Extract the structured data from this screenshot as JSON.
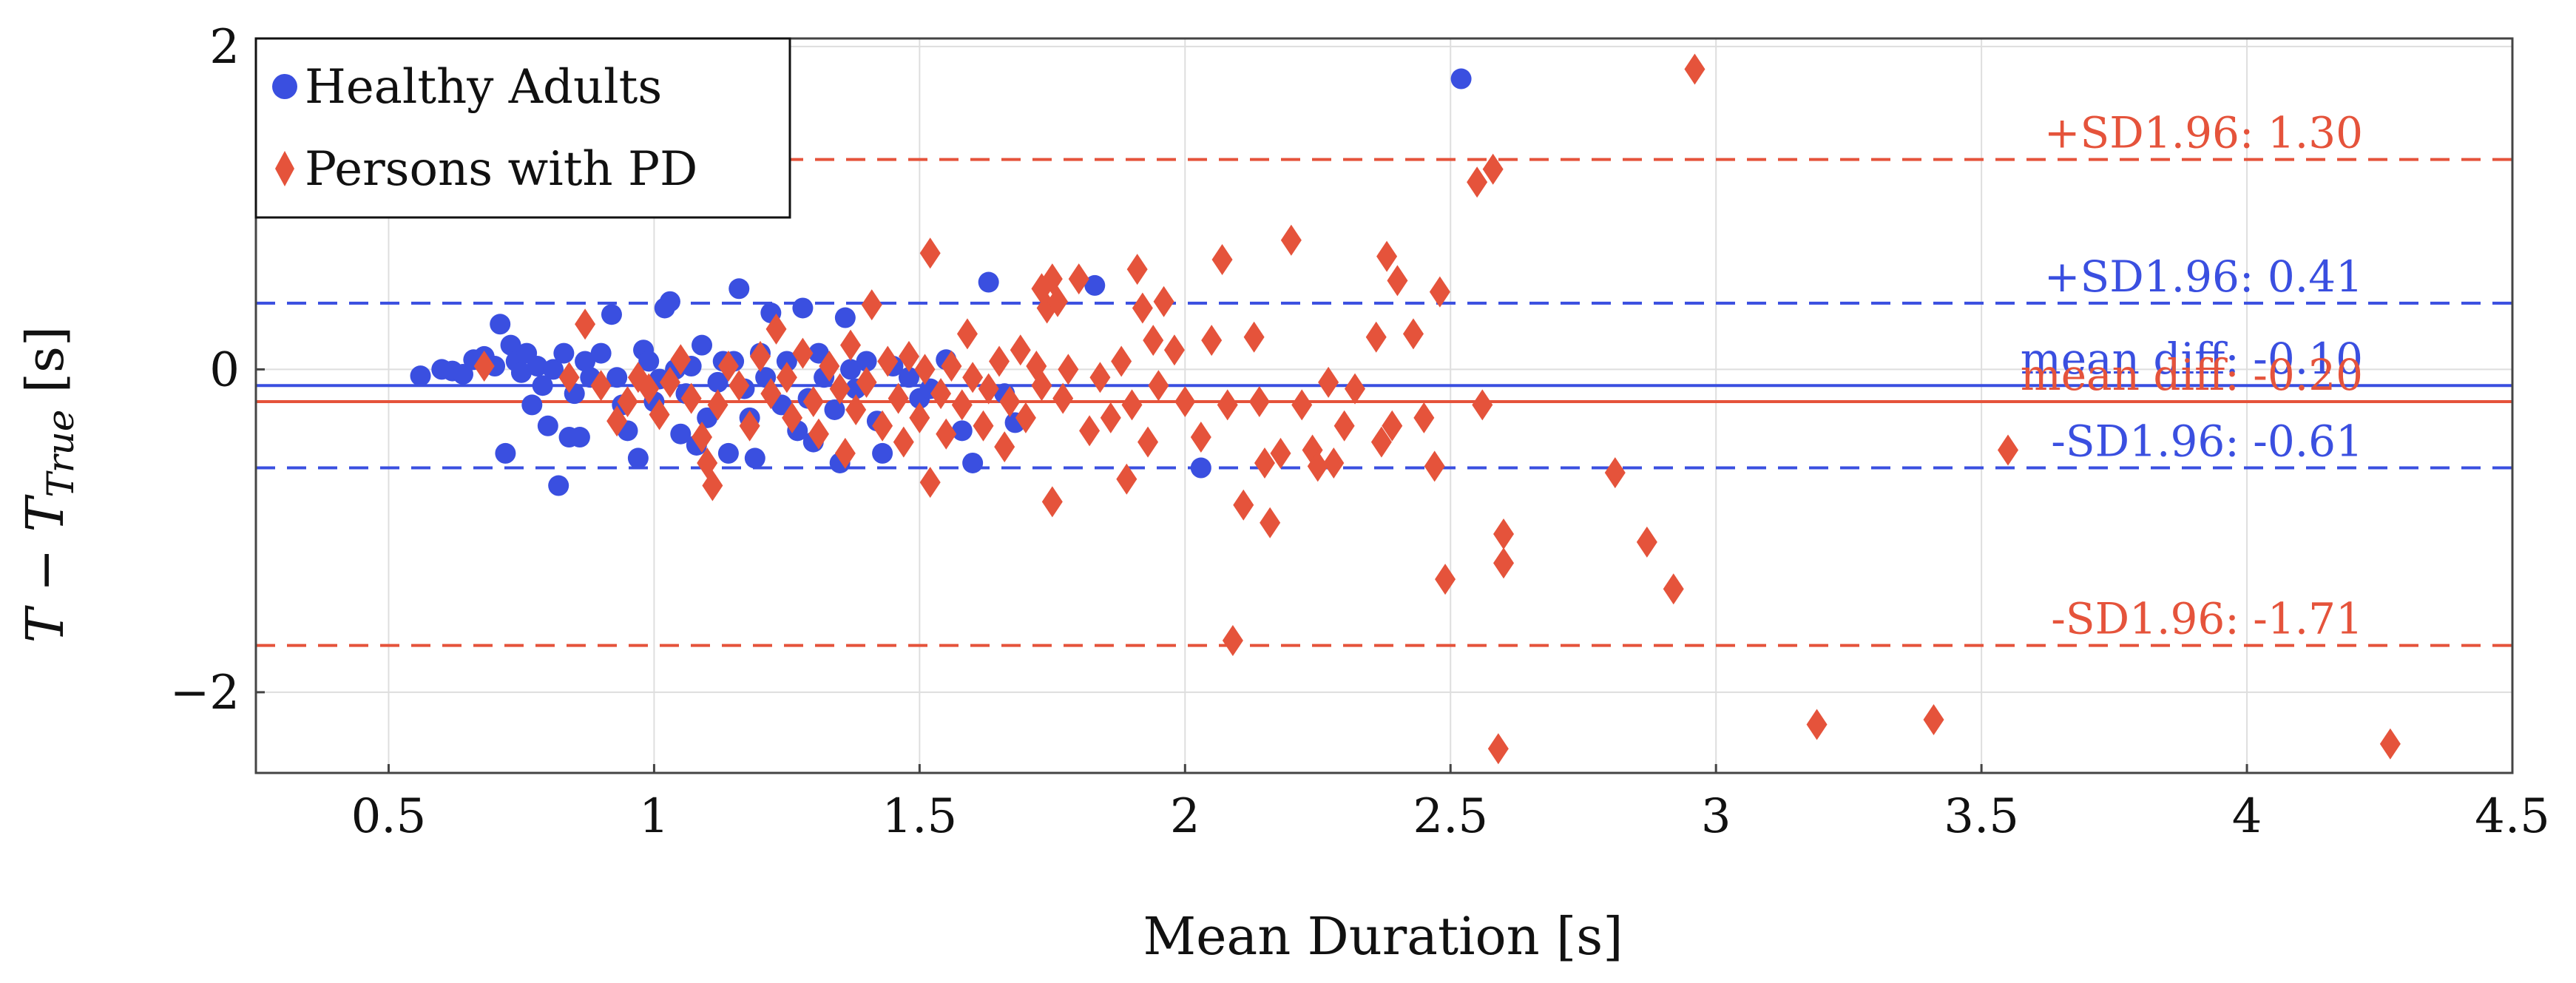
{
  "chart_data": {
    "type": "scatter",
    "xlabel": "Mean Duration [s]",
    "ylabel_parts": {
      "main": "T − T",
      "sub": "True",
      "unit": " [s]"
    },
    "xlim": [
      0.25,
      4.5
    ],
    "ylim": [
      -2.5,
      2.05
    ],
    "xticks": [
      0.5,
      1,
      1.5,
      2,
      2.5,
      3,
      3.5,
      4,
      4.5
    ],
    "xtick_labels": [
      "0.5",
      "1",
      "1.5",
      "2",
      "2.5",
      "3",
      "3.5",
      "4",
      "4.5"
    ],
    "yticks": [
      -2,
      0,
      2
    ],
    "ytick_labels": [
      "−2",
      "0",
      "2"
    ],
    "grid": true,
    "legend_position": "top-left",
    "colors": {
      "healthy": "#3a4fe0",
      "pd": "#e5533b"
    },
    "series": [
      {
        "name": "Healthy Adults",
        "marker": "circle",
        "color": "#3a4fe0",
        "points": [
          [
            0.56,
            -0.04
          ],
          [
            0.6,
            0.0
          ],
          [
            0.62,
            -0.01
          ],
          [
            0.64,
            -0.03
          ],
          [
            0.66,
            0.06
          ],
          [
            0.68,
            0.08
          ],
          [
            0.7,
            0.02
          ],
          [
            0.71,
            0.28
          ],
          [
            0.72,
            -0.52
          ],
          [
            0.73,
            0.15
          ],
          [
            0.74,
            0.05
          ],
          [
            0.75,
            -0.02
          ],
          [
            0.76,
            0.1
          ],
          [
            0.77,
            -0.22
          ],
          [
            0.78,
            0.02
          ],
          [
            0.79,
            -0.1
          ],
          [
            0.8,
            -0.35
          ],
          [
            0.81,
            0.0
          ],
          [
            0.82,
            -0.72
          ],
          [
            0.83,
            0.1
          ],
          [
            0.84,
            -0.42
          ],
          [
            0.85,
            -0.15
          ],
          [
            0.86,
            -0.42
          ],
          [
            0.87,
            0.05
          ],
          [
            0.88,
            -0.05
          ],
          [
            0.9,
            0.1
          ],
          [
            0.92,
            0.34
          ],
          [
            0.93,
            -0.05
          ],
          [
            0.94,
            -0.22
          ],
          [
            0.95,
            -0.38
          ],
          [
            0.97,
            -0.55
          ],
          [
            0.98,
            0.12
          ],
          [
            0.99,
            0.05
          ],
          [
            1.0,
            -0.2
          ],
          [
            1.01,
            -0.06
          ],
          [
            1.02,
            0.38
          ],
          [
            1.03,
            0.42
          ],
          [
            1.04,
            0.0
          ],
          [
            1.05,
            -0.4
          ],
          [
            1.06,
            -0.15
          ],
          [
            1.07,
            0.02
          ],
          [
            1.08,
            -0.47
          ],
          [
            1.09,
            0.15
          ],
          [
            1.1,
            -0.3
          ],
          [
            1.12,
            -0.08
          ],
          [
            1.13,
            0.05
          ],
          [
            1.14,
            -0.52
          ],
          [
            1.15,
            0.05
          ],
          [
            1.16,
            0.5
          ],
          [
            1.17,
            -0.12
          ],
          [
            1.18,
            -0.3
          ],
          [
            1.19,
            -0.55
          ],
          [
            1.2,
            0.1
          ],
          [
            1.21,
            -0.05
          ],
          [
            1.22,
            0.35
          ],
          [
            1.24,
            -0.22
          ],
          [
            1.25,
            0.05
          ],
          [
            1.27,
            -0.38
          ],
          [
            1.28,
            0.38
          ],
          [
            1.29,
            -0.18
          ],
          [
            1.3,
            -0.45
          ],
          [
            1.31,
            0.1
          ],
          [
            1.32,
            -0.05
          ],
          [
            1.34,
            -0.25
          ],
          [
            1.35,
            -0.58
          ],
          [
            1.36,
            0.32
          ],
          [
            1.37,
            0.0
          ],
          [
            1.38,
            -0.12
          ],
          [
            1.4,
            0.05
          ],
          [
            1.42,
            -0.32
          ],
          [
            1.43,
            -0.52
          ],
          [
            1.45,
            0.02
          ],
          [
            1.48,
            -0.05
          ],
          [
            1.5,
            -0.18
          ],
          [
            1.52,
            -0.12
          ],
          [
            1.55,
            0.06
          ],
          [
            1.58,
            -0.38
          ],
          [
            1.6,
            -0.58
          ],
          [
            1.63,
            0.54
          ],
          [
            1.66,
            -0.15
          ],
          [
            1.68,
            -0.33
          ],
          [
            1.83,
            0.52
          ],
          [
            2.03,
            -0.61
          ],
          [
            2.52,
            1.8
          ]
        ]
      },
      {
        "name": "Persons with PD",
        "marker": "diamond",
        "color": "#e5533b",
        "points": [
          [
            0.68,
            0.02
          ],
          [
            0.84,
            -0.05
          ],
          [
            0.87,
            0.28
          ],
          [
            0.9,
            -0.1
          ],
          [
            0.93,
            -0.32
          ],
          [
            0.95,
            -0.2
          ],
          [
            0.97,
            -0.05
          ],
          [
            0.99,
            -0.12
          ],
          [
            1.01,
            -0.28
          ],
          [
            1.03,
            -0.08
          ],
          [
            1.05,
            0.06
          ],
          [
            1.07,
            -0.18
          ],
          [
            1.09,
            -0.42
          ],
          [
            1.1,
            -0.58
          ],
          [
            1.11,
            -0.72
          ],
          [
            1.12,
            -0.22
          ],
          [
            1.14,
            0.02
          ],
          [
            1.16,
            -0.1
          ],
          [
            1.18,
            -0.35
          ],
          [
            1.2,
            0.08
          ],
          [
            1.22,
            -0.15
          ],
          [
            1.23,
            0.25
          ],
          [
            1.25,
            -0.05
          ],
          [
            1.26,
            -0.3
          ],
          [
            1.28,
            0.1
          ],
          [
            1.3,
            -0.2
          ],
          [
            1.31,
            -0.4
          ],
          [
            1.33,
            0.02
          ],
          [
            1.35,
            -0.12
          ],
          [
            1.36,
            -0.52
          ],
          [
            1.37,
            0.15
          ],
          [
            1.38,
            -0.25
          ],
          [
            1.4,
            -0.08
          ],
          [
            1.41,
            0.4
          ],
          [
            1.43,
            -0.35
          ],
          [
            1.44,
            0.05
          ],
          [
            1.46,
            -0.18
          ],
          [
            1.47,
            -0.45
          ],
          [
            1.48,
            0.08
          ],
          [
            1.5,
            -0.3
          ],
          [
            1.51,
            0.0
          ],
          [
            1.52,
            -0.7
          ],
          [
            1.52,
            0.72
          ],
          [
            1.54,
            -0.15
          ],
          [
            1.55,
            -0.4
          ],
          [
            1.56,
            0.02
          ],
          [
            1.58,
            -0.22
          ],
          [
            1.59,
            0.22
          ],
          [
            1.6,
            -0.05
          ],
          [
            1.62,
            -0.35
          ],
          [
            1.63,
            -0.12
          ],
          [
            1.65,
            0.05
          ],
          [
            1.66,
            -0.48
          ],
          [
            1.67,
            -0.2
          ],
          [
            1.69,
            0.12
          ],
          [
            1.7,
            -0.3
          ],
          [
            1.72,
            0.02
          ],
          [
            1.73,
            -0.1
          ],
          [
            1.73,
            0.5
          ],
          [
            1.74,
            0.38
          ],
          [
            1.75,
            0.56
          ],
          [
            1.75,
            -0.82
          ],
          [
            1.76,
            0.42
          ],
          [
            1.77,
            -0.18
          ],
          [
            1.78,
            0.0
          ],
          [
            1.8,
            0.56
          ],
          [
            1.82,
            -0.38
          ],
          [
            1.84,
            -0.05
          ],
          [
            1.86,
            -0.3
          ],
          [
            1.88,
            0.05
          ],
          [
            1.89,
            -0.68
          ],
          [
            1.9,
            -0.22
          ],
          [
            1.91,
            0.62
          ],
          [
            1.92,
            0.38
          ],
          [
            1.93,
            -0.45
          ],
          [
            1.94,
            0.18
          ],
          [
            1.95,
            -0.1
          ],
          [
            1.96,
            0.42
          ],
          [
            1.98,
            0.12
          ],
          [
            2.0,
            -0.2
          ],
          [
            2.03,
            -0.42
          ],
          [
            2.05,
            0.18
          ],
          [
            2.07,
            0.68
          ],
          [
            2.08,
            -0.22
          ],
          [
            2.09,
            -1.68
          ],
          [
            2.11,
            -0.84
          ],
          [
            2.13,
            0.2
          ],
          [
            2.14,
            -0.2
          ],
          [
            2.15,
            -0.58
          ],
          [
            2.16,
            -0.95
          ],
          [
            2.18,
            -0.52
          ],
          [
            2.2,
            0.8
          ],
          [
            2.22,
            -0.22
          ],
          [
            2.24,
            -0.5
          ],
          [
            2.25,
            -0.6
          ],
          [
            2.27,
            -0.08
          ],
          [
            2.28,
            -0.58
          ],
          [
            2.3,
            -0.35
          ],
          [
            2.32,
            -0.12
          ],
          [
            2.36,
            0.2
          ],
          [
            2.37,
            -0.45
          ],
          [
            2.38,
            0.7
          ],
          [
            2.39,
            -0.35
          ],
          [
            2.4,
            0.55
          ],
          [
            2.43,
            0.22
          ],
          [
            2.45,
            -0.3
          ],
          [
            2.47,
            -0.6
          ],
          [
            2.48,
            0.48
          ],
          [
            2.49,
            -1.3
          ],
          [
            2.55,
            1.16
          ],
          [
            2.56,
            -0.22
          ],
          [
            2.58,
            1.24
          ],
          [
            2.59,
            -2.35
          ],
          [
            2.6,
            -1.02
          ],
          [
            2.6,
            -1.2
          ],
          [
            2.81,
            -0.64
          ],
          [
            2.87,
            -1.07
          ],
          [
            2.92,
            -1.36
          ],
          [
            2.96,
            1.86
          ],
          [
            3.19,
            -2.2
          ],
          [
            3.41,
            -2.17
          ],
          [
            3.55,
            -0.5
          ],
          [
            4.27,
            -2.32
          ]
        ]
      }
    ],
    "reference_lines": [
      {
        "value": 1.3,
        "style": "dashed",
        "color": "#e5533b",
        "label": "+SD1.96: 1.30"
      },
      {
        "value": 0.41,
        "style": "dashed",
        "color": "#3a4fe0",
        "label": "+SD1.96: 0.41"
      },
      {
        "value": -0.1,
        "style": "solid",
        "color": "#3a4fe0",
        "label": "mean diff: -0.10"
      },
      {
        "value": -0.2,
        "style": "solid",
        "color": "#e5533b",
        "label": "mean diff: -0.20"
      },
      {
        "value": -0.61,
        "style": "dashed",
        "color": "#3a4fe0",
        "label": "-SD1.96: -0.61"
      },
      {
        "value": -1.71,
        "style": "dashed",
        "color": "#e5533b",
        "label": "-SD1.96: -1.71"
      }
    ],
    "legend": [
      {
        "label": "Healthy Adults",
        "marker": "circle",
        "color": "#3a4fe0"
      },
      {
        "label": "Persons with PD",
        "marker": "diamond",
        "color": "#e5533b"
      }
    ]
  }
}
